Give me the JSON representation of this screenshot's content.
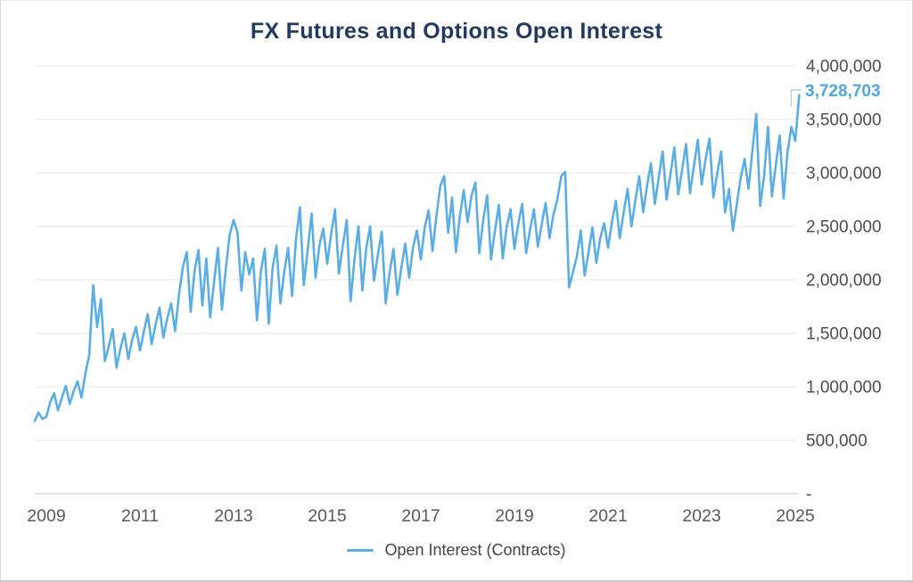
{
  "chart_data": {
    "type": "line",
    "title": "FX Futures and Options Open Interest",
    "series_name": "Open Interest (Contracts)",
    "xlabel": "",
    "ylabel": "",
    "ylim": [
      0,
      4000000
    ],
    "grid": true,
    "legend_position": "bottom",
    "y_ticks": [
      {
        "value": 4000000,
        "label": "4,000,000"
      },
      {
        "value": 3500000,
        "label": "3,500,000"
      },
      {
        "value": 3000000,
        "label": "3,000,000"
      },
      {
        "value": 2500000,
        "label": "2,500,000"
      },
      {
        "value": 2000000,
        "label": "2,000,000"
      },
      {
        "value": 1500000,
        "label": "1,500,000"
      },
      {
        "value": 1000000,
        "label": "1,000,000"
      },
      {
        "value": 500000,
        "label": "500,000"
      },
      {
        "value": 0,
        "label": "-"
      }
    ],
    "x_ticks": [
      {
        "year": 2009,
        "label": "2009"
      },
      {
        "year": 2011,
        "label": "2011"
      },
      {
        "year": 2013,
        "label": "2013"
      },
      {
        "year": 2015,
        "label": "2015"
      },
      {
        "year": 2017,
        "label": "2017"
      },
      {
        "year": 2019,
        "label": "2019"
      },
      {
        "year": 2021,
        "label": "2021"
      },
      {
        "year": 2023,
        "label": "2023"
      },
      {
        "year": 2025,
        "label": "2025"
      }
    ],
    "x_start_year": 2008.75,
    "x_step_years": 0.0833333,
    "last_value": 3728703,
    "last_value_label": "3,728,703",
    "values": [
      680000,
      760000,
      700000,
      720000,
      860000,
      940000,
      780000,
      900000,
      1010000,
      840000,
      960000,
      1050000,
      900000,
      1120000,
      1300000,
      1950000,
      1560000,
      1820000,
      1240000,
      1380000,
      1540000,
      1180000,
      1360000,
      1500000,
      1260000,
      1440000,
      1560000,
      1340000,
      1520000,
      1680000,
      1400000,
      1580000,
      1740000,
      1460000,
      1640000,
      1780000,
      1520000,
      1860000,
      2120000,
      2260000,
      1700000,
      2080000,
      2280000,
      1760000,
      2200000,
      1650000,
      1980000,
      2300000,
      1720000,
      2100000,
      2420000,
      2560000,
      2440000,
      1900000,
      2260000,
      2050000,
      2200000,
      1620000,
      2080000,
      2290000,
      1590000,
      2110000,
      2320000,
      1780000,
      2080000,
      2300000,
      1850000,
      2380000,
      2680000,
      1950000,
      2280000,
      2620000,
      2020000,
      2320000,
      2480000,
      2150000,
      2430000,
      2660000,
      2060000,
      2320000,
      2560000,
      1800000,
      2190000,
      2500000,
      1900000,
      2290000,
      2500000,
      1990000,
      2240000,
      2450000,
      1780000,
      2070000,
      2290000,
      1860000,
      2110000,
      2340000,
      2020000,
      2300000,
      2460000,
      2190000,
      2490000,
      2650000,
      2270000,
      2600000,
      2880000,
      2970000,
      2440000,
      2770000,
      2260000,
      2590000,
      2840000,
      2540000,
      2790000,
      2910000,
      2250000,
      2560000,
      2790000,
      2190000,
      2460000,
      2700000,
      2200000,
      2490000,
      2660000,
      2290000,
      2530000,
      2710000,
      2250000,
      2470000,
      2660000,
      2310000,
      2520000,
      2720000,
      2390000,
      2610000,
      2750000,
      2970000,
      3010000,
      1930000,
      2070000,
      2220000,
      2460000,
      2040000,
      2260000,
      2490000,
      2160000,
      2390000,
      2530000,
      2300000,
      2540000,
      2740000,
      2390000,
      2630000,
      2850000,
      2500000,
      2740000,
      2970000,
      2630000,
      2880000,
      3090000,
      2710000,
      2960000,
      3200000,
      2750000,
      2990000,
      3240000,
      2800000,
      3030000,
      3270000,
      2810000,
      3060000,
      3310000,
      2890000,
      3130000,
      3320000,
      2770000,
      3000000,
      3200000,
      2630000,
      2850000,
      2460000,
      2710000,
      2950000,
      3130000,
      2850000,
      3210000,
      3550000,
      2690000,
      2970000,
      3430000,
      2780000,
      3070000,
      3350000,
      2760000,
      3190000,
      3430000,
      3300000,
      3728703
    ],
    "colors": {
      "line": "#5BAEE3",
      "annotation": "#4BA7DE",
      "title": "#233A60",
      "y_tick_text": "#4d4d4d",
      "x_tick_text": "#595959",
      "gridline": "#ECECEC",
      "axis_line": "#D8D8D8",
      "leader_line": "#C8C8C8"
    }
  }
}
